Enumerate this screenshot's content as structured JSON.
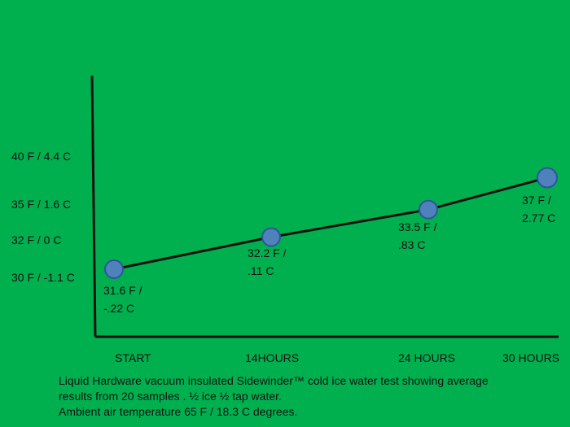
{
  "chart_data": {
    "type": "line",
    "categories": [
      "START",
      "14HOURS",
      "24 HOURS",
      "30 HOURS"
    ],
    "x": [
      0,
      14,
      24,
      30
    ],
    "y_fahrenheit": [
      31.6,
      32.2,
      33.5,
      37
    ],
    "point_labels": [
      [
        "31.6 F /",
        "-.22 C"
      ],
      [
        "32.2 F /",
        ".11 C"
      ],
      [
        "33.5  F /",
        ".83 C"
      ],
      [
        "37 F /",
        "2.77 C"
      ]
    ],
    "y_ticks": [
      {
        "value": 40,
        "label": "40 F /  4.4 C"
      },
      {
        "value": 35,
        "label": "35 F / 1.6 C"
      },
      {
        "value": 32,
        "label": "32 F /  0 C"
      },
      {
        "value": 30,
        "label": "30 F / -1.1 C"
      }
    ],
    "colors": {
      "background": "#00b04f",
      "line": "#111111",
      "marker_fill": "#4f81bd",
      "marker_stroke": "#2f5597"
    },
    "grid": false,
    "legend": "none"
  },
  "caption": {
    "line1": "Liquid Hardware vacuum insulated Sidewinder™ cold ice water test showing average",
    "line2": "results from 20 samples .  ½ ice ½ tap water.",
    "line3": "Ambient air temperature 65  F  / 18.3 C degrees."
  }
}
